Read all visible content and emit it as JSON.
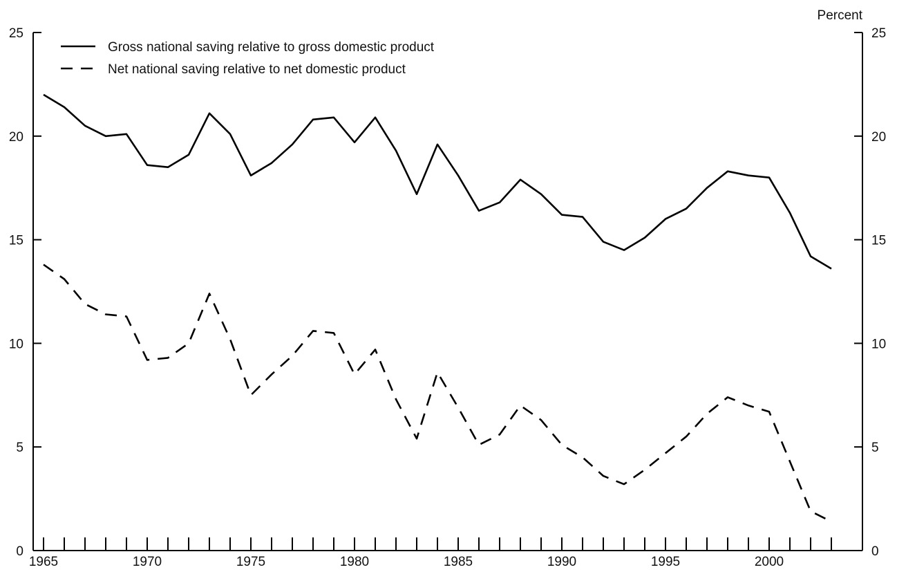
{
  "chart_data": {
    "type": "line",
    "title": "",
    "ylabel": "Percent",
    "xlim": [
      1965,
      2003
    ],
    "ylim": [
      0,
      25
    ],
    "x_ticks": [
      1965,
      1970,
      1975,
      1980,
      1985,
      1990,
      1995,
      2000
    ],
    "x_tick_labels": [
      "1965",
      "1970",
      "1975",
      "1980",
      "1985",
      "1990",
      "1995",
      "2000"
    ],
    "y_ticks": [
      0,
      5,
      10,
      15,
      20,
      25
    ],
    "y_tick_labels": [
      "0",
      "5",
      "10",
      "15",
      "20",
      "25"
    ],
    "grid": false,
    "legend_position": "top-left",
    "x": [
      1965,
      1966,
      1967,
      1968,
      1969,
      1970,
      1971,
      1972,
      1973,
      1974,
      1975,
      1976,
      1977,
      1978,
      1979,
      1980,
      1981,
      1982,
      1983,
      1984,
      1985,
      1986,
      1987,
      1988,
      1989,
      1990,
      1991,
      1992,
      1993,
      1994,
      1995,
      1996,
      1997,
      1998,
      1999,
      2000,
      2001,
      2002,
      2003
    ],
    "series": [
      {
        "name": "Gross national saving relative to gross domestic product",
        "style": "solid",
        "color": "#000000",
        "values": [
          22.0,
          21.4,
          20.5,
          20.0,
          20.1,
          18.6,
          18.5,
          19.1,
          21.1,
          20.1,
          18.1,
          18.7,
          19.6,
          20.8,
          20.9,
          19.7,
          20.9,
          19.3,
          17.2,
          19.6,
          18.1,
          16.4,
          16.8,
          17.9,
          17.2,
          16.2,
          16.1,
          14.9,
          14.5,
          15.1,
          16.0,
          16.5,
          17.5,
          18.3,
          18.1,
          18.0,
          16.3,
          14.2,
          13.6
        ]
      },
      {
        "name": "Net national saving relative to net domestic product",
        "style": "dashed",
        "color": "#000000",
        "values": [
          13.8,
          13.1,
          11.9,
          11.4,
          11.3,
          9.2,
          9.3,
          10.0,
          12.4,
          10.2,
          7.5,
          8.5,
          9.4,
          10.6,
          10.5,
          8.5,
          9.7,
          7.3,
          5.4,
          8.6,
          6.9,
          5.1,
          5.6,
          7.0,
          6.3,
          5.1,
          4.5,
          3.6,
          3.2,
          3.9,
          4.7,
          5.5,
          6.6,
          7.4,
          7.0,
          6.7,
          4.3,
          1.9,
          1.4
        ]
      }
    ]
  }
}
